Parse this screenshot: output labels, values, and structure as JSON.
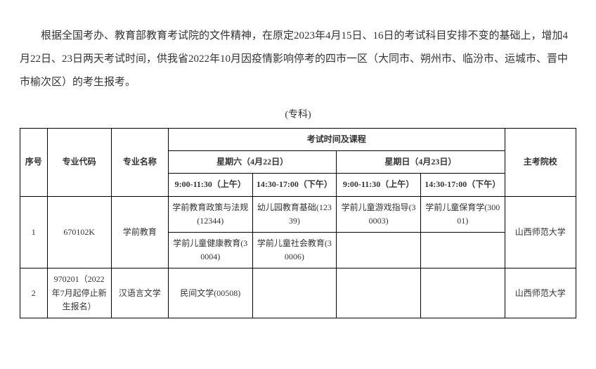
{
  "paragraph": "根据全国考办、教育部教育考试院的文件精神，在原定2023年4月15日、16日的考试科目安排不变的基础上，增加4月22日、23日两天考试时间，供我省2022年10月因疫情影响停考的四市一区（大同市、朔州市、临汾市、运城市、晋中市榆次区）的考生报考。",
  "level_label": "(专科)",
  "headers": {
    "seq": "序号",
    "code": "专业代码",
    "major": "专业名称",
    "exam_time_course": "考试时间及课程",
    "school": "主考院校",
    "sat": "星期六（4月22日）",
    "sun": "星期日（4月23日）",
    "slot1": "9:00-11:30（上午）",
    "slot2": "14:30-17:00（下午）",
    "slot3": "9:00-11:30（上午）",
    "slot4": "14:30-17:00（下午）"
  },
  "rows": [
    {
      "seq": "1",
      "code": "670102K",
      "major": "学前教育",
      "slot1a": "学前教育政策与法规(12344)",
      "slot2a": "幼儿园教育基础(12339)",
      "slot3a": "学前儿童游戏指导(30003)",
      "slot4a": "学前儿童保育学(30001)",
      "slot1b": "学前儿童健康教育(30004)",
      "slot2b": "学前儿童社会教育(30006)",
      "school": "山西师范大学"
    },
    {
      "seq": "2",
      "code": "970201（2022年7月起停止新生报名）",
      "major": "汉语言文学",
      "slot1": "民间文学(00508)",
      "slot2": "",
      "slot3": "",
      "slot4": "",
      "school": "山西师范大学"
    }
  ]
}
